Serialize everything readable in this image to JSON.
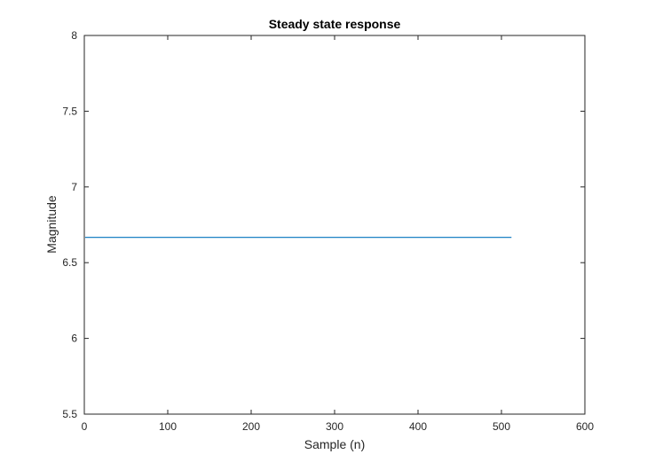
{
  "chart_data": {
    "type": "line",
    "title": "Steady state response",
    "xlabel": "Sample (n)",
    "ylabel": "Magnitude",
    "xlim": [
      0,
      600
    ],
    "ylim": [
      5.5,
      8
    ],
    "x_ticks": [
      "0",
      "100",
      "200",
      "300",
      "400",
      "500",
      "600"
    ],
    "y_ticks": [
      "5.5",
      "6",
      "6.5",
      "7",
      "7.5",
      "8"
    ],
    "grid": false,
    "series": [
      {
        "color": "#0072bd",
        "x": [
          1,
          512
        ],
        "y": [
          6.667,
          6.667
        ]
      }
    ]
  }
}
